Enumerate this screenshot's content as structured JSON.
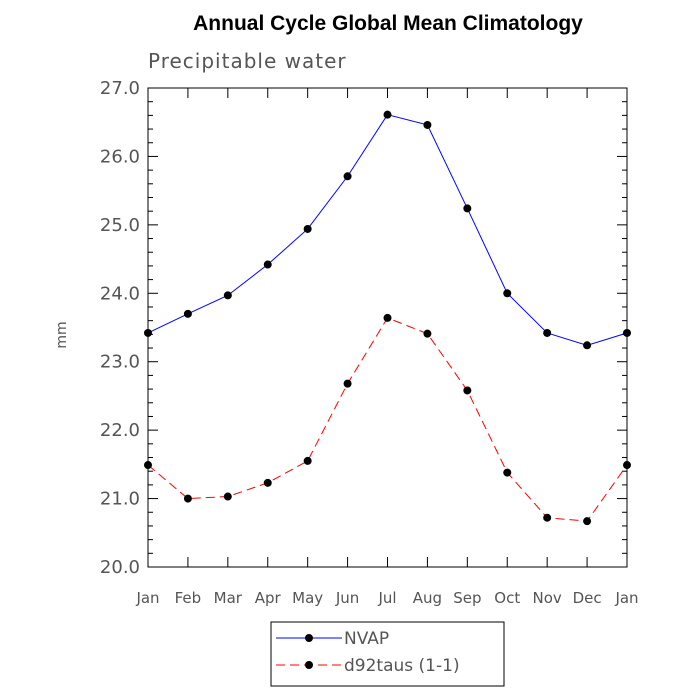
{
  "chart_data": {
    "type": "line",
    "title": "Annual Cycle Global Mean Climatology",
    "subtitle": "Precipitable water",
    "xlabel": "",
    "ylabel": "mm",
    "categories": [
      "Jan",
      "Feb",
      "Mar",
      "Apr",
      "May",
      "Jun",
      "Jul",
      "Aug",
      "Sep",
      "Oct",
      "Nov",
      "Dec",
      "Jan"
    ],
    "ylim": [
      20.0,
      27.0
    ],
    "yticks": [
      "20.0",
      "21.0",
      "22.0",
      "23.0",
      "24.0",
      "25.0",
      "26.0",
      "27.0"
    ],
    "grid": false,
    "legend_position": "bottom-center",
    "series": [
      {
        "name": "NVAP",
        "color": "#0000ff",
        "line_style": "solid",
        "values": [
          23.42,
          23.7,
          23.97,
          24.42,
          24.94,
          25.71,
          26.61,
          26.46,
          25.24,
          24.0,
          23.42,
          23.24,
          23.42
        ]
      },
      {
        "name": "d92taus (1-1)",
        "color": "#ff0000",
        "line_style": "dashed",
        "values": [
          21.49,
          21.0,
          21.03,
          21.23,
          21.55,
          22.68,
          23.64,
          23.41,
          22.58,
          21.38,
          20.72,
          20.67,
          21.49
        ]
      }
    ]
  }
}
